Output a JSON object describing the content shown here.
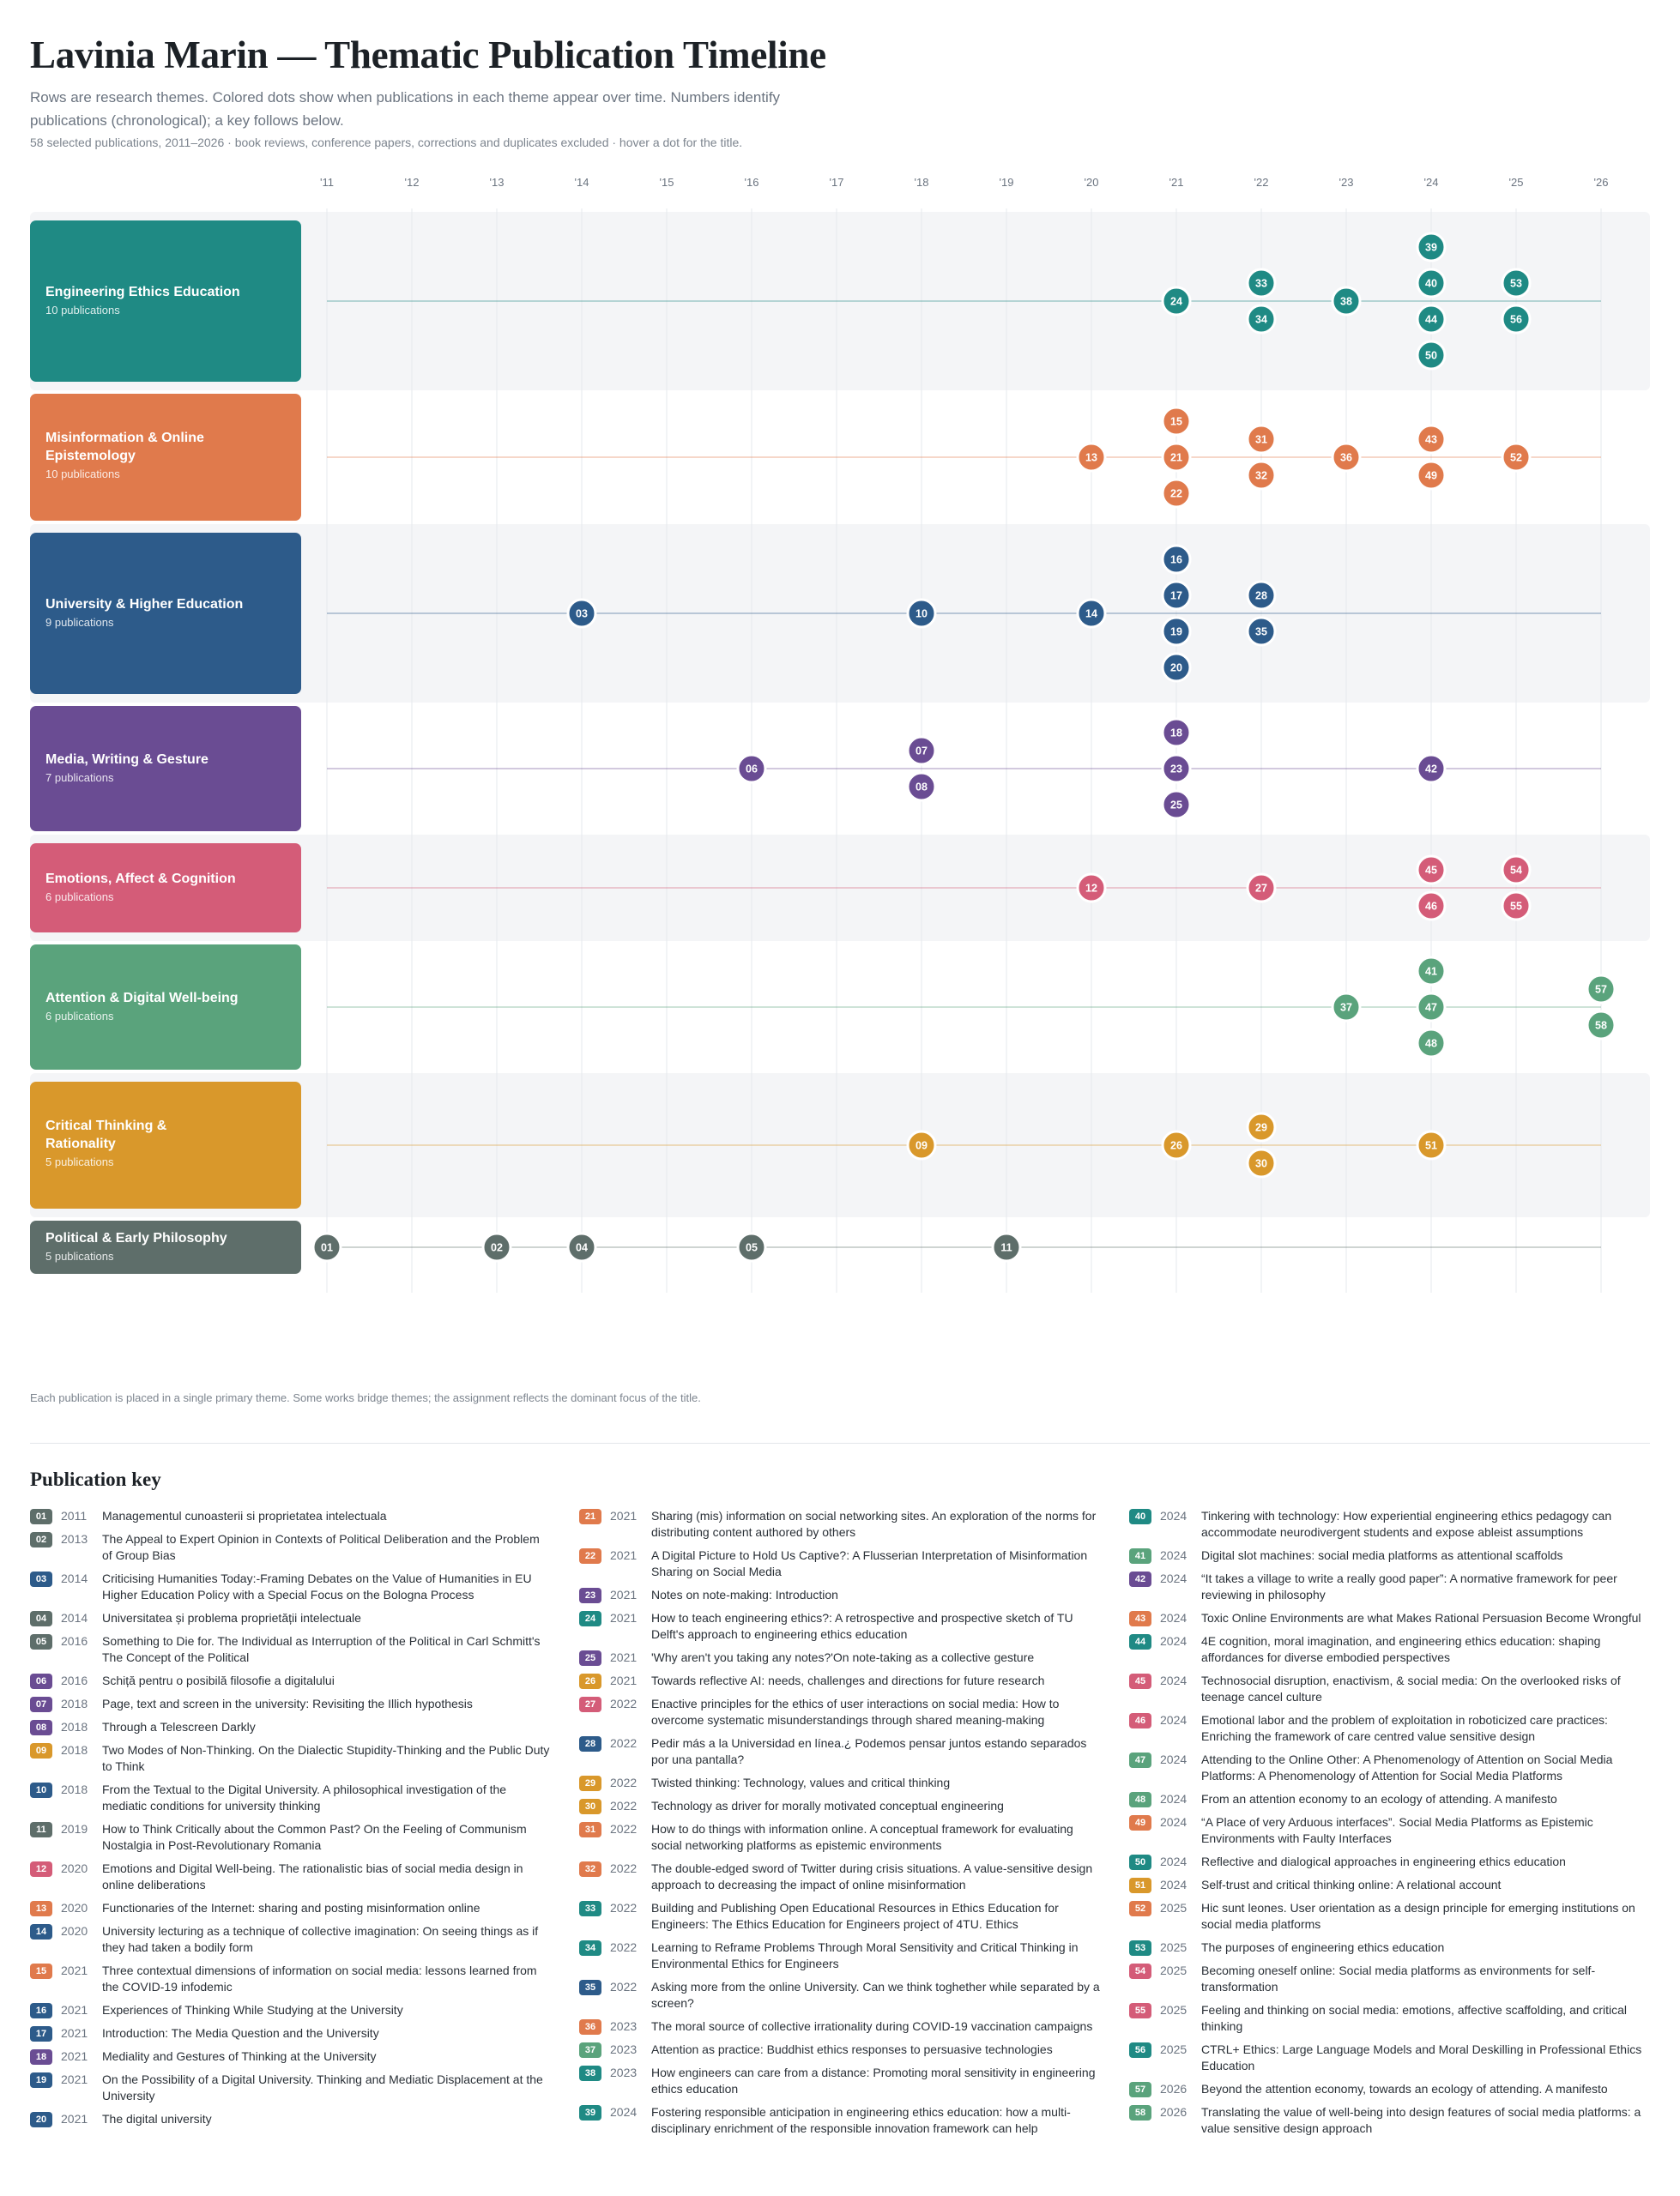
{
  "header": {
    "title": "Lavinia Marin — Thematic Publication Timeline",
    "subtitle": "Rows are research themes. Colored dots show when publications in each theme appear over time. Numbers identify publications (chronological); a key follows below.",
    "meta": "58 selected publications, 2011–2026 · book reviews, conference papers, corrections and duplicates excluded · hover a dot for the title."
  },
  "footnote": "Each publication is placed in a single primary theme. Some works bridge themes; the assignment reflects the dominant focus of the title.",
  "key_title": "Publication key",
  "chart_data": {
    "type": "scatter",
    "x_ticks": [
      "'11",
      "'12",
      "'13",
      "'14",
      "'15",
      "'16",
      "'17",
      "'18",
      "'19",
      "'20",
      "'21",
      "'22",
      "'23",
      "'24",
      "'25",
      "'26"
    ],
    "xlim": [
      2011,
      2026
    ],
    "themes": [
      {
        "name": "Engineering Ethics Education",
        "count_label": "10 publications",
        "color": "#1f8a84",
        "points": [
          {
            "id": "24",
            "year": 2021
          },
          {
            "id": "33",
            "year": 2022
          },
          {
            "id": "34",
            "year": 2022
          },
          {
            "id": "38",
            "year": 2023
          },
          {
            "id": "39",
            "year": 2024
          },
          {
            "id": "40",
            "year": 2024
          },
          {
            "id": "44",
            "year": 2024
          },
          {
            "id": "50",
            "year": 2024
          },
          {
            "id": "53",
            "year": 2025
          },
          {
            "id": "56",
            "year": 2025
          }
        ]
      },
      {
        "name": "Misinformation & Online Epistemology",
        "count_label": "10 publications",
        "color": "#e07a4c",
        "points": [
          {
            "id": "13",
            "year": 2020
          },
          {
            "id": "15",
            "year": 2021
          },
          {
            "id": "21",
            "year": 2021
          },
          {
            "id": "22",
            "year": 2021
          },
          {
            "id": "31",
            "year": 2022
          },
          {
            "id": "32",
            "year": 2022
          },
          {
            "id": "36",
            "year": 2023
          },
          {
            "id": "43",
            "year": 2024
          },
          {
            "id": "49",
            "year": 2024
          },
          {
            "id": "52",
            "year": 2025
          }
        ]
      },
      {
        "name": "University & Higher Education",
        "count_label": "9 publications",
        "color": "#2d5b8a",
        "points": [
          {
            "id": "03",
            "year": 2014
          },
          {
            "id": "10",
            "year": 2018
          },
          {
            "id": "14",
            "year": 2020
          },
          {
            "id": "16",
            "year": 2021
          },
          {
            "id": "17",
            "year": 2021
          },
          {
            "id": "19",
            "year": 2021
          },
          {
            "id": "20",
            "year": 2021
          },
          {
            "id": "28",
            "year": 2022
          },
          {
            "id": "35",
            "year": 2022
          }
        ]
      },
      {
        "name": "Media, Writing & Gesture",
        "count_label": "7 publications",
        "color": "#6a4c93",
        "points": [
          {
            "id": "06",
            "year": 2016
          },
          {
            "id": "07",
            "year": 2018
          },
          {
            "id": "08",
            "year": 2018
          },
          {
            "id": "18",
            "year": 2021
          },
          {
            "id": "23",
            "year": 2021
          },
          {
            "id": "25",
            "year": 2021
          },
          {
            "id": "42",
            "year": 2024
          }
        ]
      },
      {
        "name": "Emotions, Affect & Cognition",
        "count_label": "6 publications",
        "color": "#d45c78",
        "points": [
          {
            "id": "12",
            "year": 2020
          },
          {
            "id": "27",
            "year": 2022
          },
          {
            "id": "45",
            "year": 2024
          },
          {
            "id": "46",
            "year": 2024
          },
          {
            "id": "54",
            "year": 2025
          },
          {
            "id": "55",
            "year": 2025
          }
        ]
      },
      {
        "name": "Attention & Digital Well-being",
        "count_label": "6 publications",
        "color": "#5aa37c",
        "points": [
          {
            "id": "37",
            "year": 2023
          },
          {
            "id": "41",
            "year": 2024
          },
          {
            "id": "47",
            "year": 2024
          },
          {
            "id": "48",
            "year": 2024
          },
          {
            "id": "57",
            "year": 2026
          },
          {
            "id": "58",
            "year": 2026
          }
        ]
      },
      {
        "name": "Critical Thinking & Rationality",
        "count_label": "5 publications",
        "color": "#d9982b",
        "points": [
          {
            "id": "09",
            "year": 2018
          },
          {
            "id": "26",
            "year": 2021
          },
          {
            "id": "29",
            "year": 2022
          },
          {
            "id": "30",
            "year": 2022
          },
          {
            "id": "51",
            "year": 2024
          }
        ]
      },
      {
        "name": "Political & Early Philosophy",
        "count_label": "5 publications",
        "color": "#5e6e6a",
        "points": [
          {
            "id": "01",
            "year": 2011
          },
          {
            "id": "02",
            "year": 2013
          },
          {
            "id": "04",
            "year": 2014
          },
          {
            "id": "05",
            "year": 2016
          },
          {
            "id": "11",
            "year": 2019
          }
        ]
      }
    ]
  },
  "publications": [
    {
      "id": "01",
      "year": "2011",
      "theme": 7,
      "title": "Managementul cunoasterii si proprietatea intelectuala"
    },
    {
      "id": "02",
      "year": "2013",
      "theme": 7,
      "title": "The Appeal to Expert Opinion in Contexts of Political Deliberation and the Problem of Group Bias"
    },
    {
      "id": "03",
      "year": "2014",
      "theme": 2,
      "title": "Criticising Humanities Today:-Framing Debates on the Value of Humanities in EU Higher Education Policy with a Special Focus on the Bologna Process"
    },
    {
      "id": "04",
      "year": "2014",
      "theme": 7,
      "title": "Universitatea și problema proprietății intelectuale"
    },
    {
      "id": "05",
      "year": "2016",
      "theme": 7,
      "title": "Something to Die for. The Individual as Interruption of the Political in Carl Schmitt's The Concept of the Political"
    },
    {
      "id": "06",
      "year": "2016",
      "theme": 3,
      "title": "Schiță pentru o posibilă filosofie a digitalului"
    },
    {
      "id": "07",
      "year": "2018",
      "theme": 3,
      "title": "Page, text and screen in the university: Revisiting the Illich hypothesis"
    },
    {
      "id": "08",
      "year": "2018",
      "theme": 3,
      "title": "Through a Telescreen Darkly"
    },
    {
      "id": "09",
      "year": "2018",
      "theme": 6,
      "title": "Two Modes of Non-Thinking. On the Dialectic Stupidity-Thinking and the Public Duty to Think"
    },
    {
      "id": "10",
      "year": "2018",
      "theme": 2,
      "title": "From the Textual to the Digital University. A philosophical investigation of the mediatic conditions for university thinking"
    },
    {
      "id": "11",
      "year": "2019",
      "theme": 7,
      "title": "How to Think Critically about the Common Past? On the Feeling of Communism Nostalgia in Post-Revolutionary Romania"
    },
    {
      "id": "12",
      "year": "2020",
      "theme": 4,
      "title": "Emotions and Digital Well-being. The rationalistic bias of social media design in online deliberations"
    },
    {
      "id": "13",
      "year": "2020",
      "theme": 1,
      "title": "Functionaries of the Internet: sharing and posting misinformation online"
    },
    {
      "id": "14",
      "year": "2020",
      "theme": 2,
      "title": "University lecturing as a technique of collective imagination: On seeing things as if they had taken a bodily form"
    },
    {
      "id": "15",
      "year": "2021",
      "theme": 1,
      "title": "Three contextual dimensions of information on social media: lessons learned from the COVID-19 infodemic"
    },
    {
      "id": "16",
      "year": "2021",
      "theme": 2,
      "title": "Experiences of Thinking While Studying at the University"
    },
    {
      "id": "17",
      "year": "2021",
      "theme": 2,
      "title": "Introduction: The Media Question and the University"
    },
    {
      "id": "18",
      "year": "2021",
      "theme": 3,
      "title": "Mediality and Gestures of Thinking at the University"
    },
    {
      "id": "19",
      "year": "2021",
      "theme": 2,
      "title": "On the Possibility of a Digital University. Thinking and Mediatic Displacement at the University"
    },
    {
      "id": "20",
      "year": "2021",
      "theme": 2,
      "title": "The digital university"
    },
    {
      "id": "21",
      "year": "2021",
      "theme": 1,
      "title": "Sharing (mis) information on social networking sites. An exploration of the norms for distributing content authored by others"
    },
    {
      "id": "22",
      "year": "2021",
      "theme": 1,
      "title": "A Digital Picture to Hold Us Captive?: A Flusserian Interpretation of Misinformation Sharing on Social Media"
    },
    {
      "id": "23",
      "year": "2021",
      "theme": 3,
      "title": "Notes on note-making: Introduction"
    },
    {
      "id": "24",
      "year": "2021",
      "theme": 0,
      "title": "How to teach engineering ethics?: A retrospective and prospective sketch of TU Delft's approach to engineering ethics education"
    },
    {
      "id": "25",
      "year": "2021",
      "theme": 3,
      "title": "'Why aren't you taking any notes?'On note-taking as a collective gesture"
    },
    {
      "id": "26",
      "year": "2021",
      "theme": 6,
      "title": "Towards reflective AI: needs, challenges and directions for future research"
    },
    {
      "id": "27",
      "year": "2022",
      "theme": 4,
      "title": "Enactive principles for the ethics of user interactions on social media: How to overcome systematic misunderstandings through shared meaning-making"
    },
    {
      "id": "28",
      "year": "2022",
      "theme": 2,
      "title": "Pedir más a la Universidad en línea.¿ Podemos pensar juntos estando separados por una pantalla?"
    },
    {
      "id": "29",
      "year": "2022",
      "theme": 6,
      "title": "Twisted thinking: Technology, values and critical thinking"
    },
    {
      "id": "30",
      "year": "2022",
      "theme": 6,
      "title": "Technology as driver for morally motivated conceptual engineering"
    },
    {
      "id": "31",
      "year": "2022",
      "theme": 1,
      "title": "How to do things with information online. A conceptual framework for evaluating social networking platforms as epistemic environments"
    },
    {
      "id": "32",
      "year": "2022",
      "theme": 1,
      "title": "The double-edged sword of Twitter during crisis situations. A value-sensitive design approach to decreasing the impact of online misinformation"
    },
    {
      "id": "33",
      "year": "2022",
      "theme": 0,
      "title": "Building and Publishing Open Educational Resources in Ethics Education for Engineers: The Ethics Education for Engineers project of 4TU. Ethics"
    },
    {
      "id": "34",
      "year": "2022",
      "theme": 0,
      "title": "Learning to Reframe Problems Through Moral Sensitivity and Critical Thinking in Environmental Ethics for Engineers"
    },
    {
      "id": "35",
      "year": "2022",
      "theme": 2,
      "title": "Asking more from the online University. Can we think toghether while separated by a screen?"
    },
    {
      "id": "36",
      "year": "2023",
      "theme": 1,
      "title": "The moral source of collective irrationality during COVID-19 vaccination campaigns"
    },
    {
      "id": "37",
      "year": "2023",
      "theme": 5,
      "title": "Attention as practice: Buddhist ethics responses to persuasive technologies"
    },
    {
      "id": "38",
      "year": "2023",
      "theme": 0,
      "title": "How engineers can care from a distance: Promoting moral sensitivity in engineering ethics education"
    },
    {
      "id": "39",
      "year": "2024",
      "theme": 0,
      "title": "Fostering responsible anticipation in engineering ethics education: how a multi-disciplinary enrichment of the responsible innovation framework can help"
    },
    {
      "id": "40",
      "year": "2024",
      "theme": 0,
      "title": "Tinkering with technology: How experiential engineering ethics pedagogy can accommodate neurodivergent students and expose ableist assumptions"
    },
    {
      "id": "41",
      "year": "2024",
      "theme": 5,
      "title": "Digital slot machines: social media platforms as attentional scaffolds"
    },
    {
      "id": "42",
      "year": "2024",
      "theme": 3,
      "title": "“It takes a village to write a really good paper”: A normative framework for peer reviewing in philosophy"
    },
    {
      "id": "43",
      "year": "2024",
      "theme": 1,
      "title": "Toxic Online Environments are what Makes Rational Persuasion Become Wrongful"
    },
    {
      "id": "44",
      "year": "2024",
      "theme": 0,
      "title": "4E cognition, moral imagination, and engineering ethics education: shaping affordances for diverse embodied perspectives"
    },
    {
      "id": "45",
      "year": "2024",
      "theme": 4,
      "title": "Technosocial disruption, enactivism, & social media: On the overlooked risks of teenage cancel culture"
    },
    {
      "id": "46",
      "year": "2024",
      "theme": 4,
      "title": "Emotional labor and the problem of exploitation in roboticized care practices: Enriching the framework of care centred value sensitive design"
    },
    {
      "id": "47",
      "year": "2024",
      "theme": 5,
      "title": "Attending to the Online Other: A Phenomenology of Attention on Social Media Platforms: A Phenomenology of Attention for Social Media Platforms"
    },
    {
      "id": "48",
      "year": "2024",
      "theme": 5,
      "title": "From an attention economy to an ecology of attending. A manifesto"
    },
    {
      "id": "49",
      "year": "2024",
      "theme": 1,
      "title": "“A Place of very Arduous interfaces”. Social Media Platforms as Epistemic Environments with Faulty Interfaces"
    },
    {
      "id": "50",
      "year": "2024",
      "theme": 0,
      "title": "Reflective and dialogical approaches in engineering ethics education"
    },
    {
      "id": "51",
      "year": "2024",
      "theme": 6,
      "title": "Self-trust and critical thinking online: A relational account"
    },
    {
      "id": "52",
      "year": "2025",
      "theme": 1,
      "title": "Hic sunt leones. User orientation as a design principle for emerging institutions on social media platforms"
    },
    {
      "id": "53",
      "year": "2025",
      "theme": 0,
      "title": "The purposes of engineering ethics education"
    },
    {
      "id": "54",
      "year": "2025",
      "theme": 4,
      "title": "Becoming oneself online: Social media platforms as environments for self-transformation"
    },
    {
      "id": "55",
      "year": "2025",
      "theme": 4,
      "title": "Feeling and thinking on social media: emotions, affective scaffolding, and critical thinking"
    },
    {
      "id": "56",
      "year": "2025",
      "theme": 0,
      "title": "CTRL+ Ethics: Large Language Models and Moral Deskilling in Professional Ethics Education"
    },
    {
      "id": "57",
      "year": "2026",
      "theme": 5,
      "title": "Beyond the attention economy, towards an ecology of attending. A manifesto"
    },
    {
      "id": "58",
      "year": "2026",
      "theme": 5,
      "title": "Translating the value of well-being into design features of social media platforms: a value sensitive design approach"
    }
  ]
}
